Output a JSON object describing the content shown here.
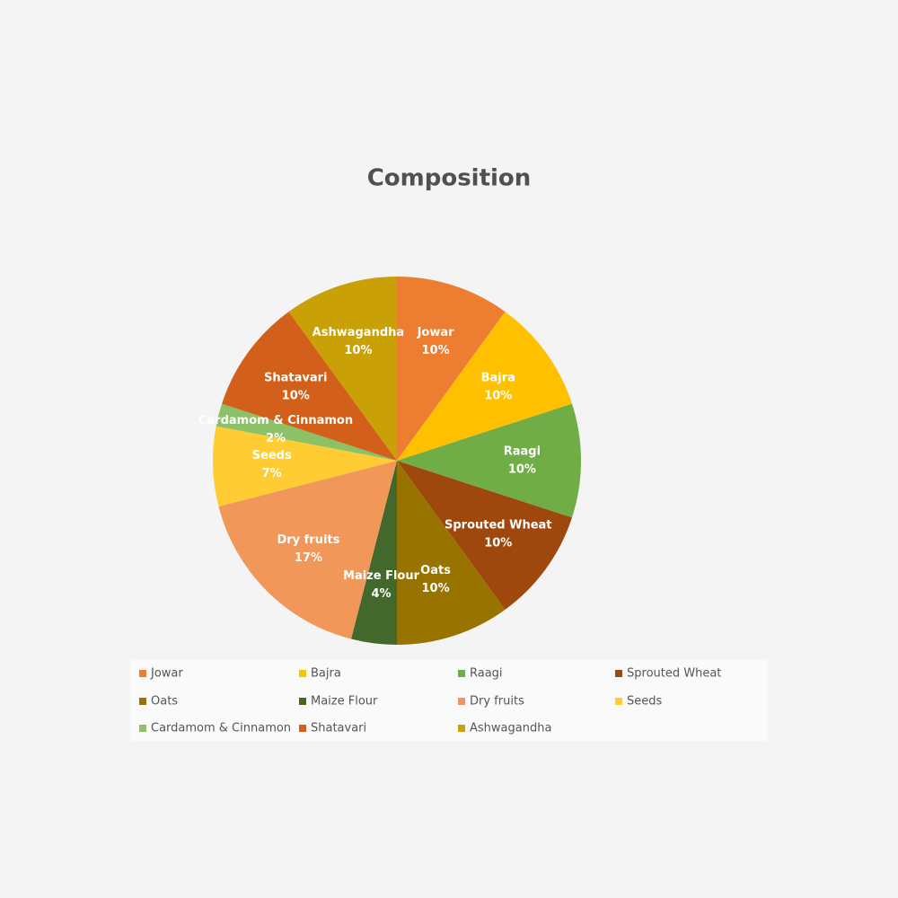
{
  "chart_data": {
    "type": "pie",
    "title": "Composition",
    "categories": [
      "Jowar",
      "Bajra",
      "Raagi",
      "Sprouted Wheat",
      "Oats",
      "Maize Flour",
      "Dry fruits",
      "Seeds",
      "Cardamom & Cinnamon",
      "Shatavari",
      "Ashwagandha"
    ],
    "values": [
      10,
      10,
      10,
      10,
      10,
      4,
      17,
      7,
      2,
      10,
      10
    ],
    "value_labels": [
      "10%",
      "10%",
      "10%",
      "10%",
      "10%",
      "4%",
      "17%",
      "7%",
      "2%",
      "10%",
      "10%"
    ],
    "colors": [
      "#ed7d31",
      "#ffc000",
      "#70ad47",
      "#9e480e",
      "#997300",
      "#43682b",
      "#f1975a",
      "#ffcd33",
      "#8cc168",
      "#d2601a",
      "#c9a005"
    ],
    "legend": "bottom"
  }
}
